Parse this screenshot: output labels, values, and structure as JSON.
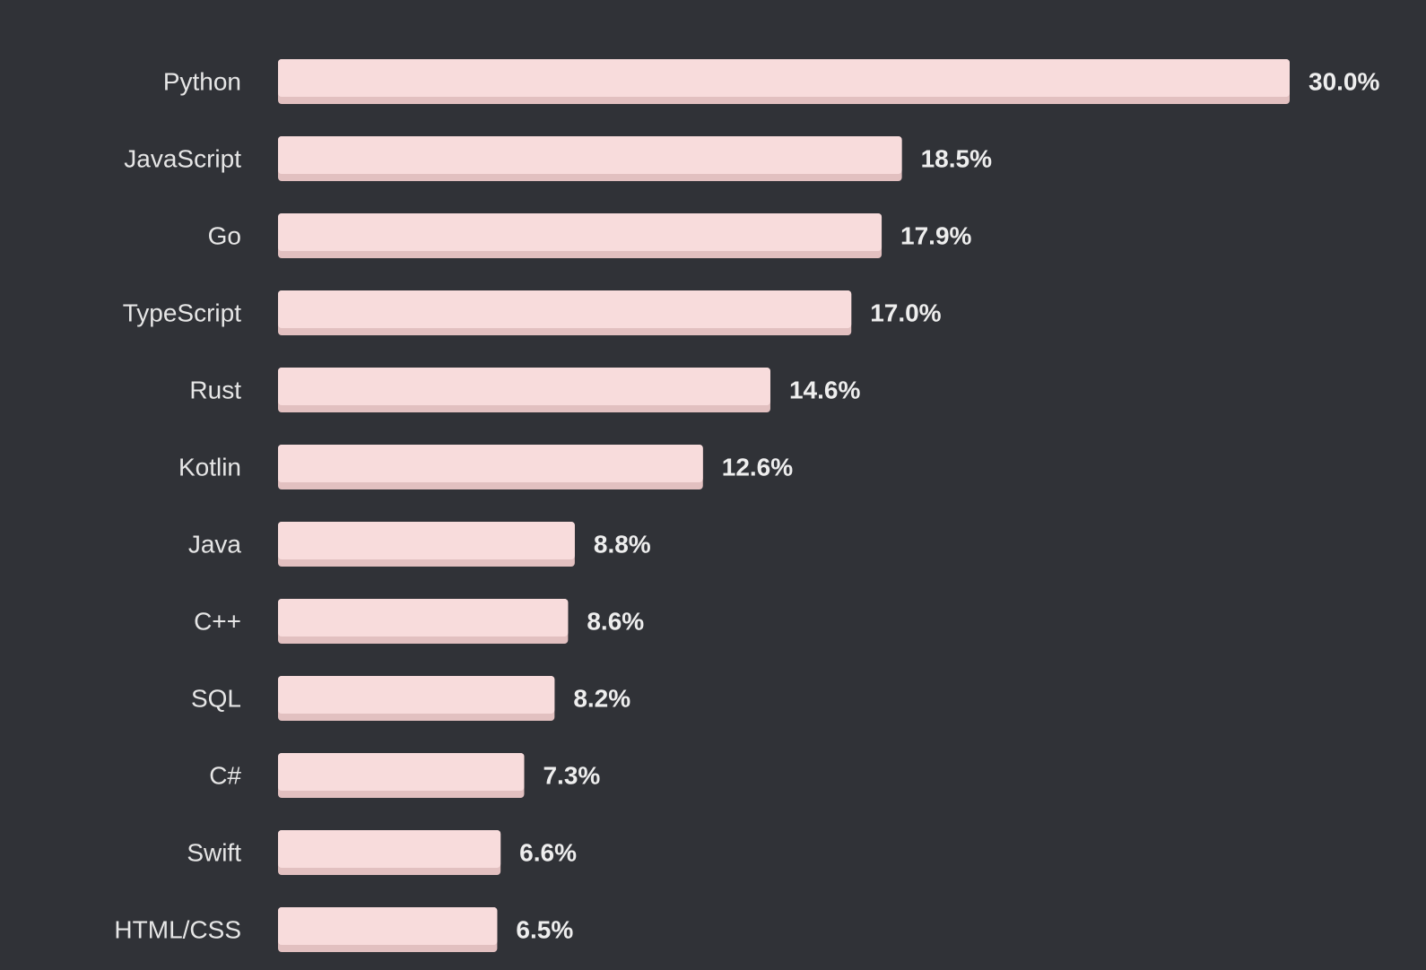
{
  "chart_data": {
    "type": "bar",
    "orientation": "horizontal",
    "categories": [
      "Python",
      "JavaScript",
      "Go",
      "TypeScript",
      "Rust",
      "Kotlin",
      "Java",
      "C++",
      "SQL",
      "C#",
      "Swift",
      "HTML/CSS"
    ],
    "values": [
      30.0,
      18.5,
      17.9,
      17.0,
      14.6,
      12.6,
      8.8,
      8.6,
      8.2,
      7.3,
      6.6,
      6.5
    ],
    "value_labels": [
      "30.0%",
      "18.5%",
      "17.9%",
      "17.0%",
      "14.6%",
      "12.6%",
      "8.8%",
      "8.6%",
      "8.2%",
      "7.3%",
      "6.6%",
      "6.5%"
    ],
    "xlim": [
      0,
      30
    ],
    "grid": false,
    "legend": "none"
  },
  "colors": {
    "background": "#303237",
    "bar_fill": "#f8dcdc",
    "bar_shadow": "#e2c0c0",
    "category_text": "#e6e6e6",
    "value_text": "#eeeeee"
  }
}
